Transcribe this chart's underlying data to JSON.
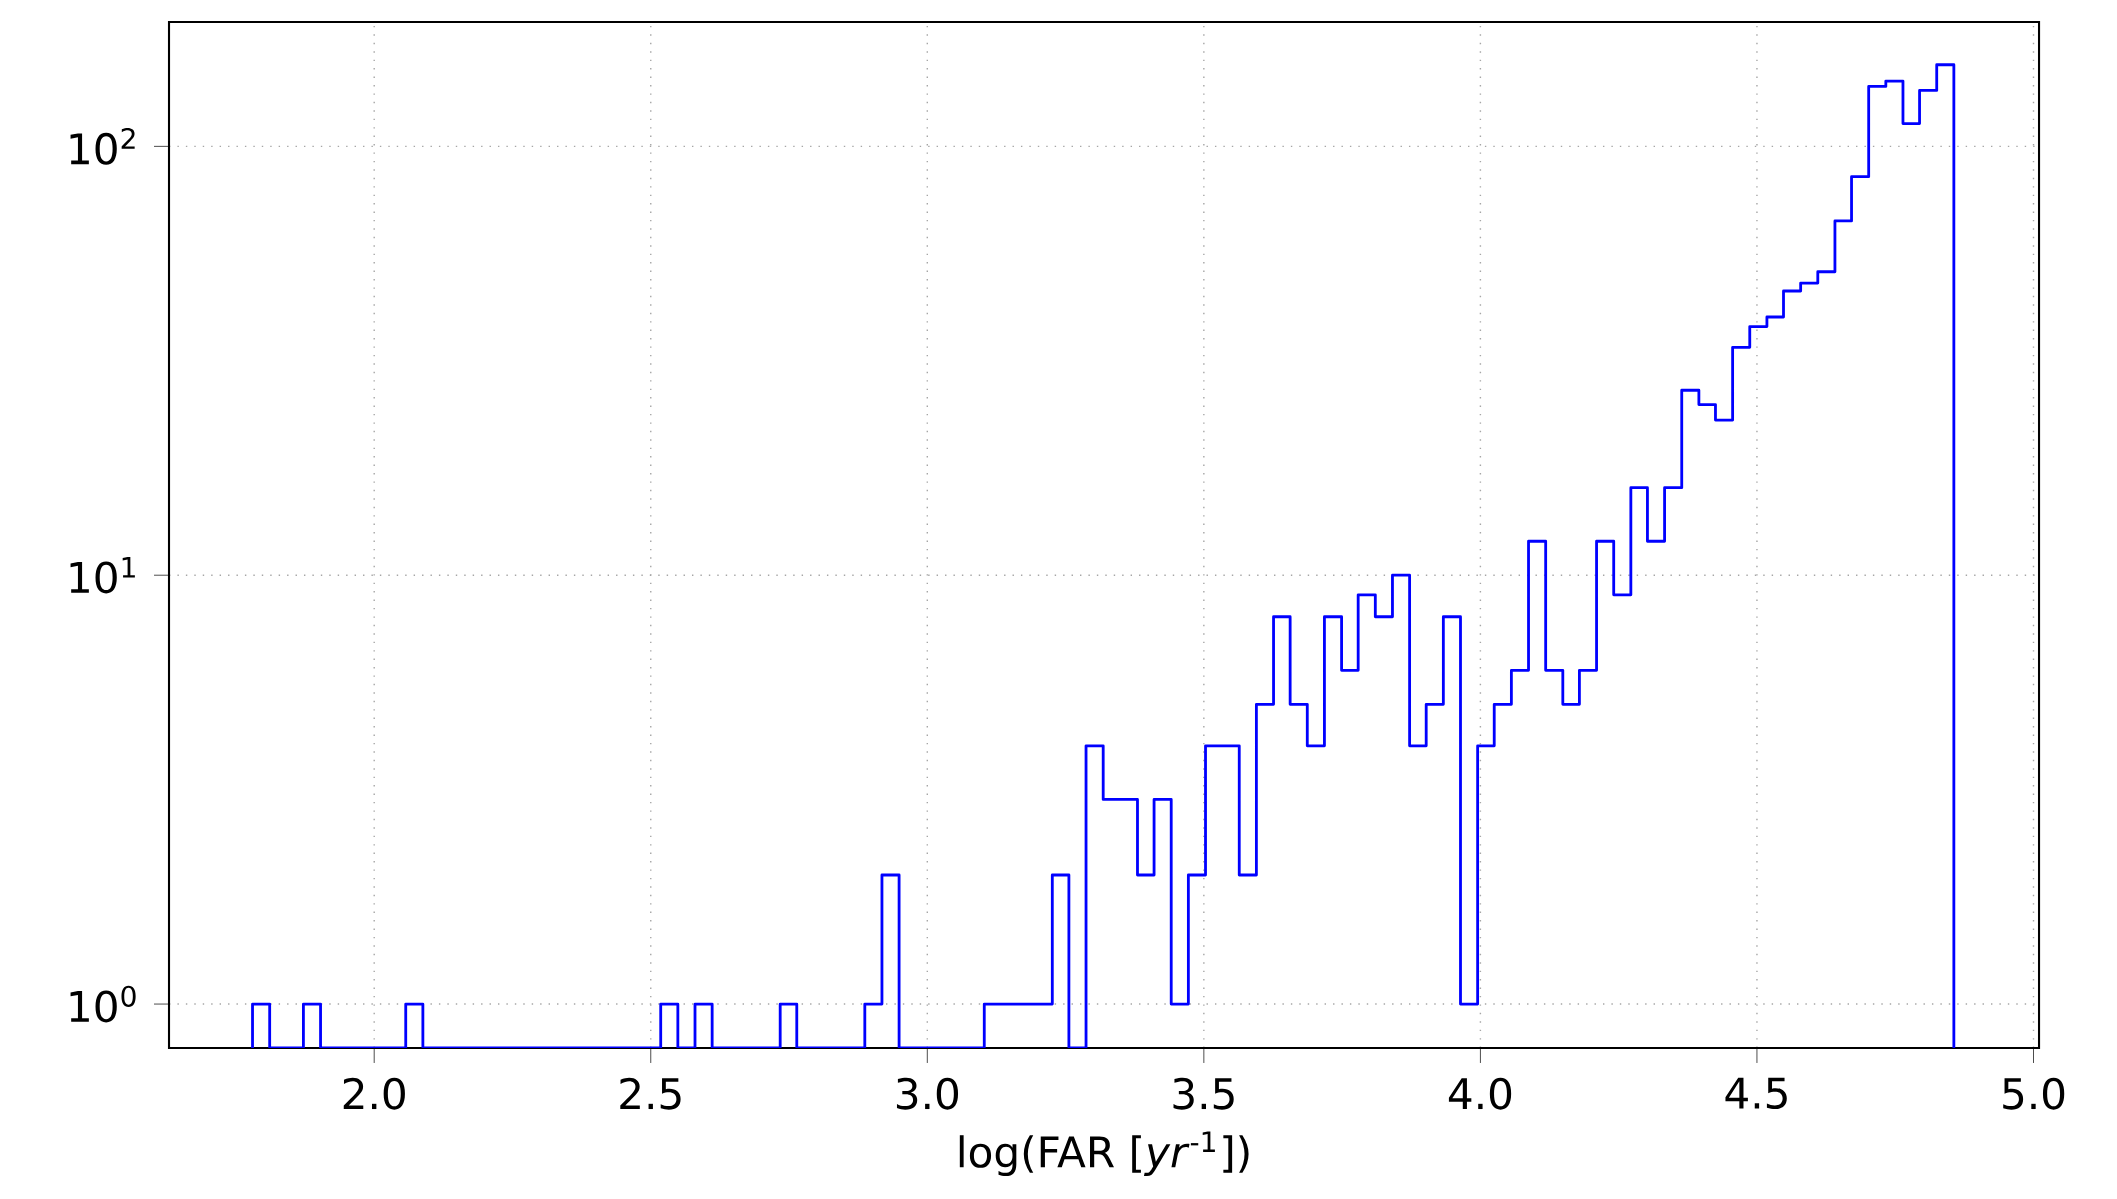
{
  "chart_data": {
    "type": "histogram",
    "xlabel": "log(FAR [*yr*$^{-1}$])",
    "color": "#0000ff",
    "log": true,
    "grid": true,
    "xlim": [
      1.629,
      5.01
    ],
    "ylim": [
      0.79,
      195
    ],
    "xticks": [
      {
        "value": 2,
        "label": "2.0"
      },
      {
        "value": 2.5,
        "label": "2.5"
      },
      {
        "value": 3,
        "label": "3.0"
      },
      {
        "value": 3.5,
        "label": "3.5"
      },
      {
        "value": 4,
        "label": "4.0"
      },
      {
        "value": 4.5,
        "label": "4.5"
      },
      {
        "value": 5,
        "label": "5.0"
      }
    ],
    "yticks": [
      {
        "value": 1,
        "label": "10$^{0}$"
      },
      {
        "value": 10,
        "label": "10$^{1}$"
      },
      {
        "value": 100,
        "label": "10$^{2}$"
      }
    ],
    "bins": [
      1.78,
      1.811,
      1.842,
      1.872,
      1.903,
      1.934,
      1.965,
      1.995,
      2.026,
      2.057,
      2.088,
      2.118,
      2.149,
      2.18,
      2.211,
      2.241,
      2.272,
      2.303,
      2.334,
      2.364,
      2.395,
      2.426,
      2.457,
      2.487,
      2.518,
      2.549,
      2.58,
      2.611,
      2.641,
      2.672,
      2.703,
      2.734,
      2.764,
      2.795,
      2.826,
      2.857,
      2.887,
      2.918,
      2.949,
      2.98,
      3.01,
      3.041,
      3.072,
      3.103,
      3.133,
      3.164,
      3.195,
      3.226,
      3.256,
      3.287,
      3.318,
      3.349,
      3.38,
      3.41,
      3.441,
      3.472,
      3.503,
      3.533,
      3.564,
      3.595,
      3.626,
      3.656,
      3.687,
      3.718,
      3.749,
      3.779,
      3.81,
      3.841,
      3.872,
      3.902,
      3.933,
      3.964,
      3.995,
      4.025,
      4.056,
      4.087,
      4.118,
      4.149,
      4.179,
      4.21,
      4.241,
      4.272,
      4.302,
      4.333,
      4.364,
      4.395,
      4.425,
      4.456,
      4.487,
      4.518,
      4.548,
      4.579,
      4.61,
      4.641,
      4.671,
      4.702,
      4.733,
      4.764,
      4.794,
      4.825,
      4.856
    ],
    "values": [
      1,
      null,
      null,
      1,
      null,
      null,
      null,
      null,
      null,
      1,
      null,
      null,
      null,
      null,
      null,
      null,
      null,
      null,
      null,
      null,
      null,
      null,
      null,
      null,
      1,
      null,
      1,
      null,
      null,
      null,
      null,
      1,
      null,
      null,
      null,
      null,
      1,
      2,
      null,
      null,
      null,
      null,
      null,
      1,
      1,
      1,
      1,
      2,
      null,
      4,
      3,
      3,
      2,
      3,
      1,
      2,
      4,
      4,
      2,
      5,
      8,
      5,
      4,
      8,
      6,
      9,
      8,
      10,
      4,
      5,
      8,
      1,
      4,
      5,
      6,
      12,
      6,
      5,
      6,
      12,
      9,
      16,
      12,
      16,
      27,
      25,
      23,
      34,
      38,
      40,
      46,
      48,
      51,
      67,
      85,
      138,
      142,
      113,
      135,
      155
    ]
  }
}
